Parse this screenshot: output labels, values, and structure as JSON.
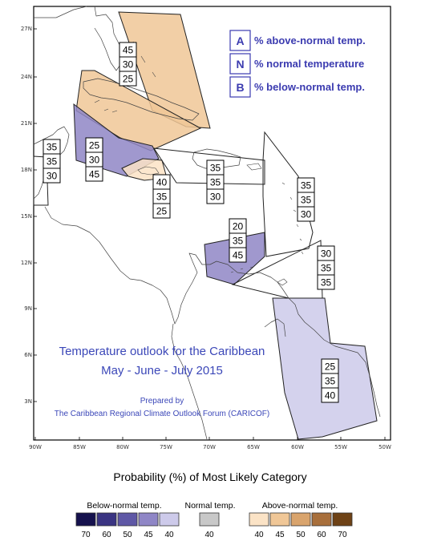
{
  "axes": {
    "lat_labels": [
      "27N",
      "24N",
      "21N",
      "18N",
      "15N",
      "12N",
      "9N",
      "6N",
      "3N"
    ],
    "lon_labels": [
      "90W",
      "85W",
      "80W",
      "75W",
      "70W",
      "65W",
      "60W",
      "55W",
      "50W"
    ]
  },
  "key": {
    "items": [
      {
        "letter": "A",
        "text": "% above-normal temp."
      },
      {
        "letter": "N",
        "text": "% normal temperature"
      },
      {
        "letter": "B",
        "text": "% below-normal temp."
      }
    ]
  },
  "map_title": {
    "line1": "Temperature outlook for the Caribbean",
    "line2": "May - June - July 2015"
  },
  "prepared": {
    "line1": "Prepared by",
    "line2": "The Caribbean Regional Climate Outlook Forum (CARICOF)"
  },
  "regions": [
    {
      "id": "bahamas",
      "fill": "#f0c797",
      "values": [
        "45",
        "30",
        "25"
      ]
    },
    {
      "id": "cuba",
      "fill": "#f0c797",
      "values": null
    },
    {
      "id": "western-caribbean",
      "fill": "#8f86c6",
      "values": [
        "25",
        "30",
        "45"
      ]
    },
    {
      "id": "belize-yucatan",
      "fill": "none",
      "values": [
        "35",
        "35",
        "30"
      ]
    },
    {
      "id": "jamaica",
      "fill": "#fbe3c6",
      "values": [
        "40",
        "35",
        "25"
      ]
    },
    {
      "id": "greater-antilles-east",
      "fill": "none",
      "values": [
        "35",
        "35",
        "30"
      ]
    },
    {
      "id": "leeward-islands",
      "fill": "none",
      "values": [
        "35",
        "35",
        "30"
      ]
    },
    {
      "id": "abc-islands",
      "fill": "#8f86c6",
      "values": [
        "20",
        "35",
        "45"
      ]
    },
    {
      "id": "windward-islands",
      "fill": "none",
      "values": [
        "30",
        "35",
        "35"
      ]
    },
    {
      "id": "guianas",
      "fill": "#cdcaea",
      "values": [
        "25",
        "35",
        "40"
      ]
    }
  ],
  "probability_legend": {
    "title": "Probability (%) of Most Likely Category",
    "below": {
      "label": "Below-normal temp.",
      "swatches": [
        {
          "value": "70",
          "color": "#15114d"
        },
        {
          "value": "60",
          "color": "#3a3482"
        },
        {
          "value": "50",
          "color": "#5f58a6"
        },
        {
          "value": "45",
          "color": "#8f86c6"
        },
        {
          "value": "40",
          "color": "#cdcaea"
        }
      ]
    },
    "normal": {
      "label": "Normal temp.",
      "swatches": [
        {
          "value": "40",
          "color": "#c8c8c8"
        }
      ]
    },
    "above": {
      "label": "Above-normal temp.",
      "swatches": [
        {
          "value": "40",
          "color": "#fbe3c6"
        },
        {
          "value": "45",
          "color": "#f0c797"
        },
        {
          "value": "50",
          "color": "#d9a46d"
        },
        {
          "value": "60",
          "color": "#a86f3c"
        },
        {
          "value": "70",
          "color": "#6e4216"
        }
      ]
    }
  }
}
